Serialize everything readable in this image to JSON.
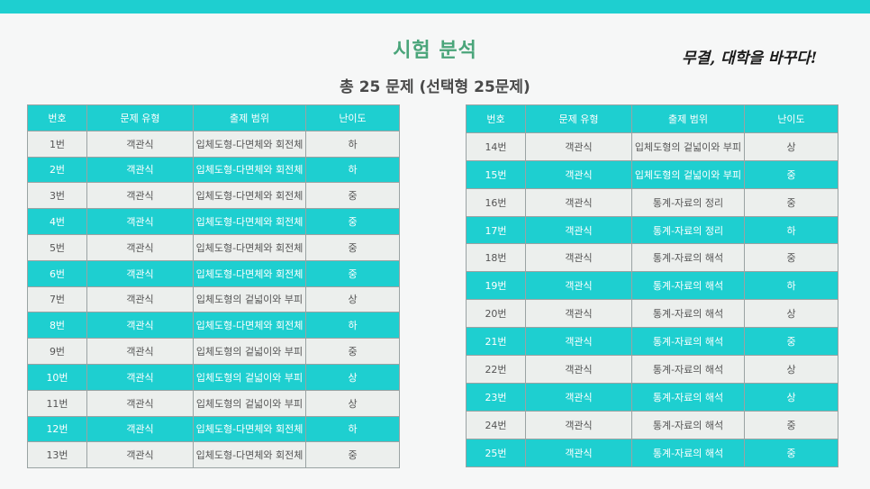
{
  "header": {
    "title": "시험 분석",
    "subtitle": "총 25 문제 (선택형 25문제)",
    "slogan": "무결, 대학을 바꾸다!"
  },
  "colors": {
    "accent": "#1ecfd0",
    "title": "#4aa57a"
  },
  "table_headers": [
    "번호",
    "문제 유형",
    "출제 범위",
    "난이도"
  ],
  "left_rows": [
    [
      "1번",
      "객관식",
      "입체도형-다면체와 회전체",
      "하"
    ],
    [
      "2번",
      "객관식",
      "입체도형-다면체와 회전체",
      "하"
    ],
    [
      "3번",
      "객관식",
      "입체도형-다면체와 회전체",
      "중"
    ],
    [
      "4번",
      "객관식",
      "입체도형-다면체와 회전체",
      "중"
    ],
    [
      "5번",
      "객관식",
      "입체도형-다면체와 회전체",
      "중"
    ],
    [
      "6번",
      "객관식",
      "입체도형-다면체와 회전체",
      "중"
    ],
    [
      "7번",
      "객관식",
      "입체도형의 겉넓이와 부피",
      "상"
    ],
    [
      "8번",
      "객관식",
      "입체도형-다면체와 회전체",
      "하"
    ],
    [
      "9번",
      "객관식",
      "입체도형의 겉넓이와 부피",
      "중"
    ],
    [
      "10번",
      "객관식",
      "입체도형의 겉넓이와 부피",
      "상"
    ],
    [
      "11번",
      "객관식",
      "입체도형의 겉넓이와 부피",
      "상"
    ],
    [
      "12번",
      "객관식",
      "입체도형-다면체와 회전체",
      "하"
    ],
    [
      "13번",
      "객관식",
      "입체도형-다면체와 회전체",
      "중"
    ]
  ],
  "right_rows": [
    [
      "14번",
      "객관식",
      "입체도형의 겉넓이와 부피",
      "상"
    ],
    [
      "15번",
      "객관식",
      "입체도형의 겉넓이와 부피",
      "중"
    ],
    [
      "16번",
      "객관식",
      "통계-자료의 정리",
      "중"
    ],
    [
      "17번",
      "객관식",
      "통계-자료의 정리",
      "하"
    ],
    [
      "18번",
      "객관식",
      "통계-자료의 해석",
      "중"
    ],
    [
      "19번",
      "객관식",
      "통계-자료의 해석",
      "하"
    ],
    [
      "20번",
      "객관식",
      "통계-자료의 해석",
      "상"
    ],
    [
      "21번",
      "객관식",
      "통계-자료의 해석",
      "중"
    ],
    [
      "22번",
      "객관식",
      "통계-자료의 해석",
      "상"
    ],
    [
      "23번",
      "객관식",
      "통계-자료의 해석",
      "상"
    ],
    [
      "24번",
      "객관식",
      "통계-자료의 해석",
      "중"
    ],
    [
      "25번",
      "객관식",
      "통계-자료의 해석",
      "중"
    ]
  ]
}
